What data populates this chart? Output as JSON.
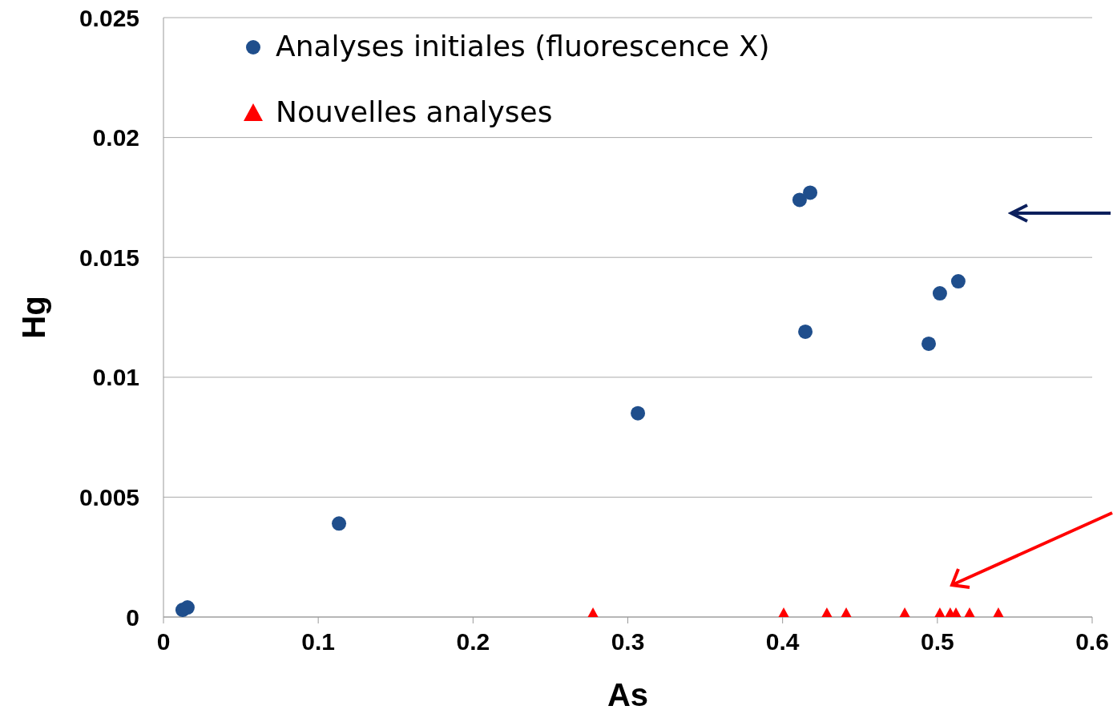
{
  "chart_data": {
    "type": "scatter",
    "xlabel": "As",
    "ylabel": "Hg",
    "xlim": [
      0,
      0.6
    ],
    "ylim": [
      0,
      0.025
    ],
    "xticks": [
      0,
      0.1,
      0.2,
      0.3,
      0.4,
      0.5,
      0.6
    ],
    "yticks": [
      0,
      0.005,
      0.01,
      0.015,
      0.02,
      0.025
    ],
    "grid": "y",
    "legend": "top left",
    "series": [
      {
        "name": "Analyses initiales (fluorescence X)",
        "color": "#1f4e8c",
        "marker": "circle",
        "x": [
          0.0124,
          0.0155,
          0.1134,
          0.3065,
          0.411,
          0.4178,
          0.4147,
          0.4944,
          0.5016,
          0.5135
        ],
        "values": [
          0.0003,
          0.0004,
          0.0039,
          0.0085,
          0.0174,
          0.0177,
          0.0119,
          0.0114,
          0.0135,
          0.014
        ]
      },
      {
        "name": "Nouvelles analyses",
        "color": "#ff0000",
        "marker": "triangle",
        "x": [
          0.2775,
          0.4007,
          0.4286,
          0.4411,
          0.4789,
          0.5016,
          0.5083,
          0.512,
          0.5208,
          0.5394
        ],
        "values": [
          0,
          0,
          0,
          0,
          0,
          0,
          0,
          0,
          0,
          0
        ]
      }
    ]
  }
}
